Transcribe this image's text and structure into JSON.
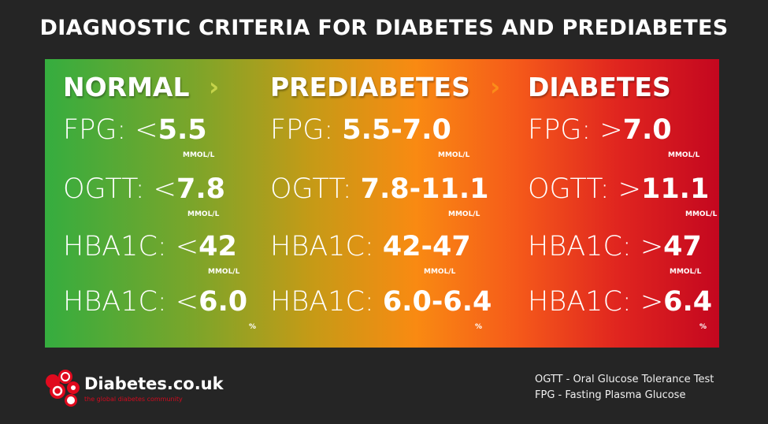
{
  "title": "DIAGNOSTIC CRITERIA FOR DIABETES AND PREDIABETES",
  "colors": {
    "background": "#252525",
    "green": "#35ad3f",
    "orange": "#f98a12",
    "red": "#c4071f",
    "arrow_green": "#c5d34a",
    "arrow_orange": "#fb8c1a"
  },
  "columns": [
    {
      "heading": "NORMAL",
      "arrow": "›",
      "rows": [
        {
          "label": "FPG: ",
          "op": "<",
          "value": "5.5",
          "unit": "MMOL/L"
        },
        {
          "label": "OGTT: ",
          "op": "<",
          "value": "7.8",
          "unit": "MMOL/L"
        },
        {
          "label": "HBA1C: ",
          "op": "<",
          "value": "42",
          "unit": "MMOL/L"
        },
        {
          "label": "HBA1C: ",
          "op": "<",
          "value": "6.0",
          "unit": "%"
        }
      ]
    },
    {
      "heading": "PREDIABETES",
      "arrow": "›",
      "rows": [
        {
          "label": "FPG: ",
          "op": "",
          "value": "5.5-7.0",
          "unit": "MMOL/L"
        },
        {
          "label": "OGTT: ",
          "op": "",
          "value": "7.8-11.1",
          "unit": "MMOL/L"
        },
        {
          "label": "HBA1C: ",
          "op": "",
          "value": "42-47",
          "unit": "MMOL/L"
        },
        {
          "label": "HBA1C: ",
          "op": "",
          "value": "6.0-6.4",
          "unit": "%"
        }
      ]
    },
    {
      "heading": "DIABETES",
      "rows": [
        {
          "label": "FPG: ",
          "op": ">",
          "value": "7.0",
          "unit": "MMOL/L"
        },
        {
          "label": "OGTT: ",
          "op": ">",
          "value": "11.1",
          "unit": "MMOL/L"
        },
        {
          "label": "HBA1C: ",
          "op": ">",
          "value": "47",
          "unit": "MMOL/L"
        },
        {
          "label": "HBA1C: ",
          "op": ">",
          "value": "6.4",
          "unit": "%"
        }
      ]
    }
  ],
  "footer": {
    "brand": "Diabetes.co.uk",
    "tagline": "the global diabetes community",
    "legend": [
      "OGTT - Oral Glucose Tolerance Test",
      "FPG - Fasting Plasma Glucose"
    ]
  }
}
